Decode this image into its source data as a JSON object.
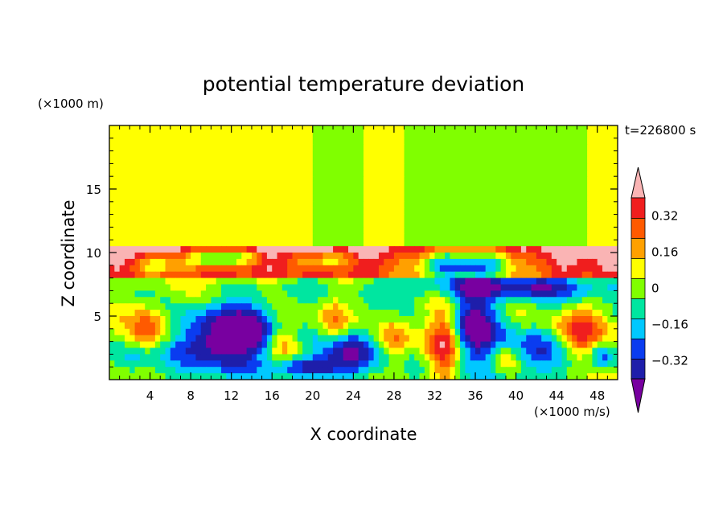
{
  "chart_data": {
    "type": "heatmap",
    "title": "potential temperature deviation",
    "xlabel": "X coordinate",
    "ylabel": "Z coordinate",
    "x_unit": "(×1000 m/s)",
    "y_unit": "(×1000 m)",
    "time_label": "t=226800 s",
    "xlim": [
      0,
      50
    ],
    "ylim": [
      0,
      20
    ],
    "x_ticks": [
      4,
      8,
      12,
      16,
      20,
      24,
      28,
      32,
      36,
      40,
      44,
      48
    ],
    "y_ticks": [
      5,
      10,
      15
    ],
    "colorbar": {
      "labeled_levels": [
        0.32,
        0.16,
        0,
        -0.16,
        -0.32
      ],
      "labels": [
        "0.32",
        "0.16",
        "0",
        "−0.16",
        "−0.32"
      ],
      "levels": [
        -0.4,
        -0.32,
        -0.24,
        -0.16,
        -0.08,
        0,
        0.08,
        0.16,
        0.24,
        0.32,
        0.4
      ],
      "colors": [
        "#7800a0",
        "#1e1eaa",
        "#0a3cf0",
        "#00c8ff",
        "#00e6a0",
        "#80ff00",
        "#ffff00",
        "#ffa000",
        "#ff5a00",
        "#f01e1e",
        "#fab4b4"
      ],
      "extend": "both"
    }
  }
}
